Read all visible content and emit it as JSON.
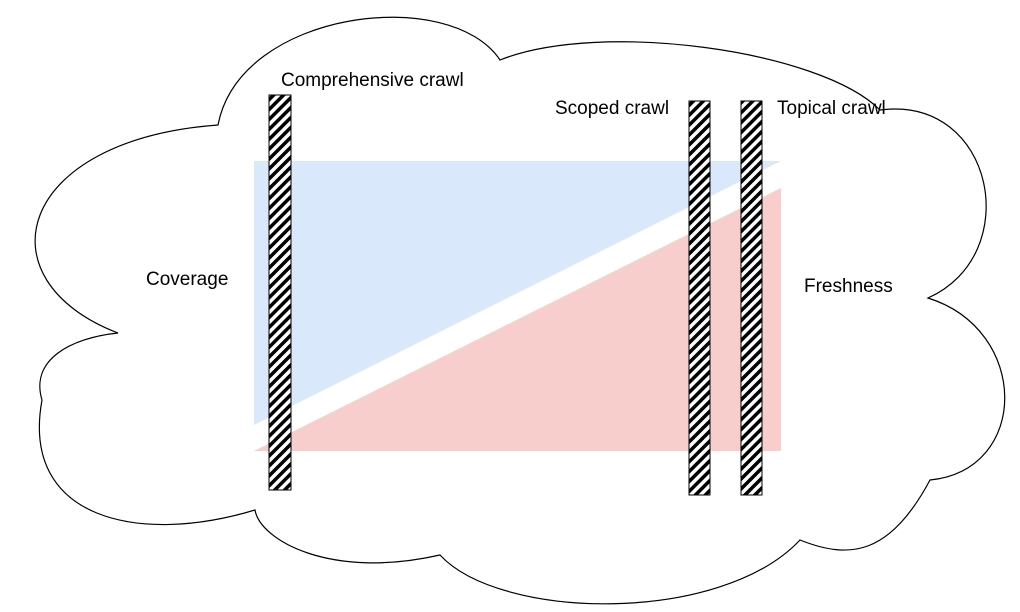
{
  "labels": {
    "comprehensive": "Comprehensive crawl",
    "scoped": "Scoped crawl",
    "topical": "Topical crawl",
    "coverage": "Coverage",
    "freshness": "Freshness"
  },
  "colors": {
    "coverage_fill": "#dae8fc",
    "freshness_fill": "#f8cecc",
    "outline": "#000000",
    "background": "#ffffff"
  }
}
